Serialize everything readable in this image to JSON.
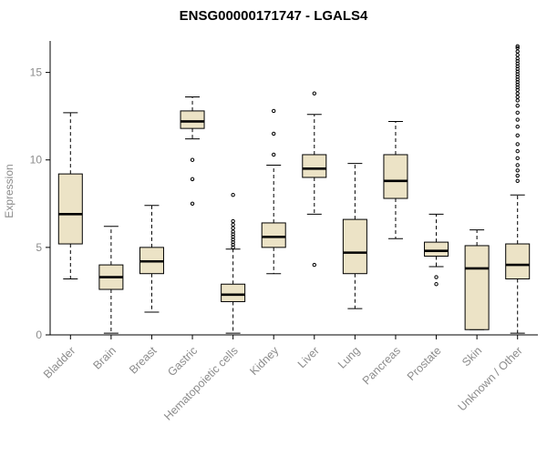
{
  "chart_data": {
    "type": "boxplot",
    "title": "ENSG00000171747 - LGALS4",
    "ylabel": "Expression",
    "ylim": [
      0,
      16.8
    ],
    "yticks": [
      0,
      5,
      10,
      15
    ],
    "grid": false,
    "legend": "none",
    "box_fill": "#ece3c6",
    "axis_color": "#000000",
    "label_color": "#8c8c8c",
    "categories": [
      "Bladder",
      "Brain",
      "Breast",
      "Gastric",
      "Hematopoietic cells",
      "Kidney",
      "Liver",
      "Lung",
      "Pancreas",
      "Prostate",
      "Skin",
      "Unknown / Other"
    ],
    "boxes": [
      {
        "category": "Bladder",
        "low": 3.2,
        "q1": 5.2,
        "median": 6.9,
        "q3": 9.2,
        "high": 12.7,
        "outliers": []
      },
      {
        "category": "Brain",
        "low": 0.1,
        "q1": 2.6,
        "median": 3.3,
        "q3": 4.0,
        "high": 6.2,
        "outliers": []
      },
      {
        "category": "Breast",
        "low": 1.3,
        "q1": 3.5,
        "median": 4.2,
        "q3": 5.0,
        "high": 7.4,
        "outliers": []
      },
      {
        "category": "Gastric",
        "low": 11.2,
        "q1": 11.8,
        "median": 12.2,
        "q3": 12.8,
        "high": 13.6,
        "outliers": [
          10.0,
          8.9,
          7.5
        ]
      },
      {
        "category": "Hematopoietic cells",
        "low": 0.1,
        "q1": 1.9,
        "median": 2.3,
        "q3": 2.9,
        "high": 4.9,
        "outliers": [
          5.0,
          5.15,
          5.3,
          5.45,
          5.6,
          5.75,
          5.9,
          6.1,
          6.3,
          6.5,
          8.0
        ]
      },
      {
        "category": "Kidney",
        "low": 3.5,
        "q1": 5.0,
        "median": 5.6,
        "q3": 6.4,
        "high": 9.7,
        "outliers": [
          12.8,
          11.5,
          10.3
        ]
      },
      {
        "category": "Liver",
        "low": 6.9,
        "q1": 9.0,
        "median": 9.5,
        "q3": 10.3,
        "high": 12.6,
        "outliers": [
          13.8,
          4.0
        ]
      },
      {
        "category": "Lung",
        "low": 1.5,
        "q1": 3.5,
        "median": 4.7,
        "q3": 6.6,
        "high": 9.8,
        "outliers": []
      },
      {
        "category": "Pancreas",
        "low": 5.5,
        "q1": 7.8,
        "median": 8.8,
        "q3": 10.3,
        "high": 12.2,
        "outliers": []
      },
      {
        "category": "Prostate",
        "low": 3.9,
        "q1": 4.5,
        "median": 4.8,
        "q3": 5.3,
        "high": 6.9,
        "outliers": [
          3.3,
          2.9
        ]
      },
      {
        "category": "Skin",
        "low": 0.3,
        "q1": 0.3,
        "median": 3.8,
        "q3": 5.1,
        "high": 6.0,
        "outliers": []
      },
      {
        "category": "Unknown / Other",
        "low": 0.1,
        "q1": 3.2,
        "median": 4.0,
        "q3": 5.2,
        "high": 8.0,
        "outliers": [
          8.8,
          9.1,
          9.4,
          9.7,
          10.1,
          10.5,
          10.9,
          11.4,
          11.9,
          12.3,
          12.7,
          13.1,
          13.4,
          13.6,
          13.8,
          14.0,
          14.15,
          14.3,
          14.45,
          14.6,
          14.75,
          14.9,
          15.05,
          15.2,
          15.35,
          15.5,
          15.65,
          15.8,
          16.0,
          16.2,
          16.4,
          16.5
        ]
      }
    ]
  }
}
